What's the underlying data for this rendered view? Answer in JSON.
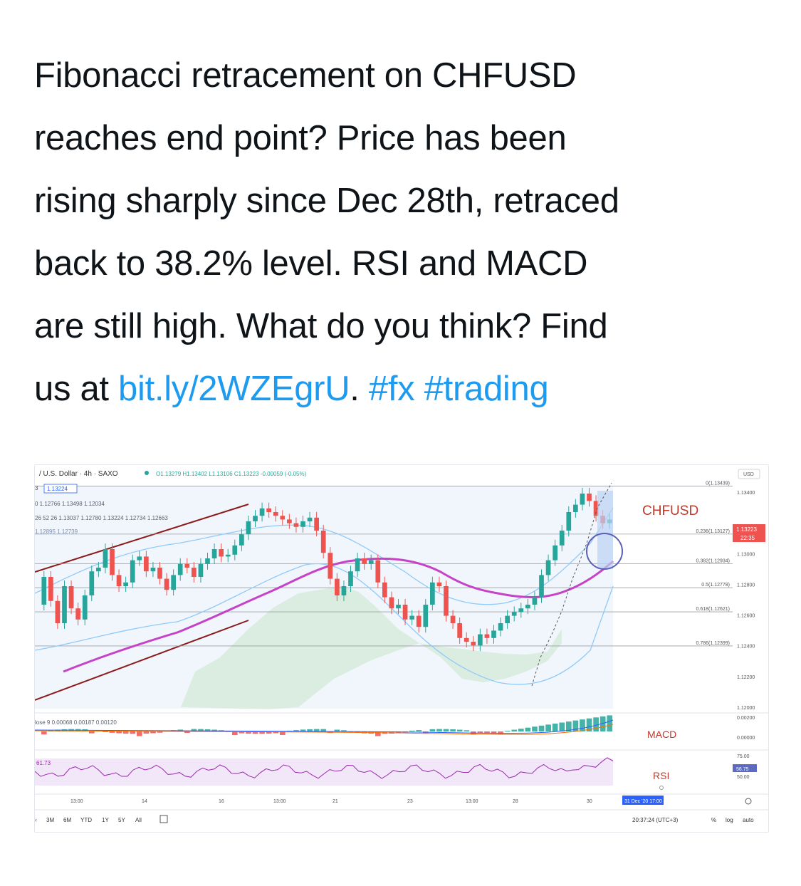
{
  "tweet": {
    "lines": [
      "Fibonacci retracement on CHFUSD",
      "reaches end point? Price has been",
      "rising sharply since Dec 28th, retraced",
      "back to 38.2% level. RSI and MACD",
      "are still high. What do you think? Find"
    ],
    "last_prefix": "us at ",
    "link": "bit.ly/2WZEgrU",
    "after_link": ". ",
    "hashtag1": "#fx",
    "hashtag2": "#trading"
  },
  "chart": {
    "header": "/ U.S. Dollar · 4h · SAXO",
    "ohlc": "O1.13279 H1.13402 L1.13106 C1.13223 -0.00059 (-0.05%)",
    "price_chip": "1.13224",
    "chip_prefix": "3",
    "legend_row2": "0  1.12766  1.13498  1.12034",
    "legend_row3": "26 52 26  1.13037  1.12780  1.13224  1.12734  1.12663",
    "legend_row4": "1.12895  1.12739",
    "currency": "USD",
    "symbol_label": "CHFUSD",
    "current_price": "1.13223",
    "countdown": "22:35",
    "price_axis": [
      "1.13400",
      "1.13000",
      "1.12800",
      "1.12600",
      "1.12400",
      "1.12200",
      "1.12000"
    ],
    "fib_levels": [
      {
        "label": "0(1.13439)",
        "price": 1.13439
      },
      {
        "label": "0.236(1.13127)",
        "price": 1.13127
      },
      {
        "label": "0.382(1.12934)",
        "price": 1.12934
      },
      {
        "label": "0.5(1.12778)",
        "price": 1.12778
      },
      {
        "label": "0.618(1.12621)",
        "price": 1.12621
      },
      {
        "label": "0.786(1.12399)",
        "price": 1.12399
      }
    ],
    "macd_legend": "lose 9   0.00068   0.00187   0.00120",
    "macd_title": "MACD",
    "macd_axis": [
      "0.00200",
      "0.00000"
    ],
    "rsi_value_label": "61.73",
    "rsi_title": "RSI",
    "rsi_axis_top": "75.00",
    "rsi_axis_bottom": "50.00",
    "rsi_chip": "56.75",
    "time_axis": [
      "13:00",
      "14",
      "16",
      "13:00",
      "21",
      "23",
      "13:00",
      "28",
      "30"
    ],
    "date_chip": "31 Dec '20   17:00",
    "ranges": [
      "3M",
      "6M",
      "YTD",
      "1Y",
      "5Y",
      "All"
    ],
    "clock": "20:37:24 (UTC+3)",
    "toggles": [
      "%",
      "log",
      "auto"
    ],
    "colors": {
      "up": "#26a69a",
      "down": "#ef5350",
      "ma": "#c642c6",
      "fib": "#9aa0a6",
      "cloud": "#a5d6a7",
      "bb": "#90caf9",
      "channel": "#8b1a1a",
      "circle": "#5c5fb8",
      "highlight": "#bbd3f3"
    }
  }
}
